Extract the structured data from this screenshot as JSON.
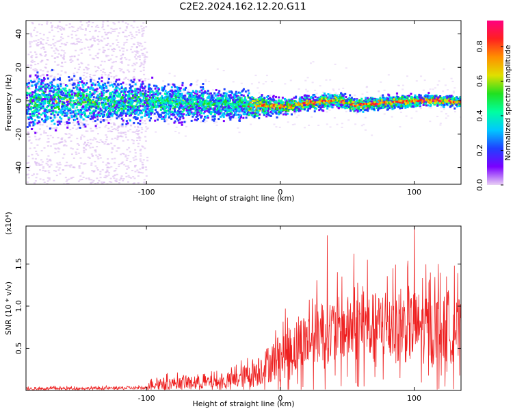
{
  "title": "C2E2.2024.162.12.20.G11",
  "chart_data": [
    {
      "type": "heatmap",
      "title": "C2E2.2024.162.12.20.G11",
      "xlabel": "Height of straight line (km)",
      "ylabel": "Frequency (Hz)",
      "xlim": [
        -190,
        135
      ],
      "ylim": [
        -50,
        48
      ],
      "xticks": [
        -100,
        0,
        100
      ],
      "xtick_labels": [
        "-100",
        "0",
        "100"
      ],
      "yticks": [
        -40,
        -20,
        0,
        20,
        40
      ],
      "ytick_labels": [
        "-40",
        "-20",
        "0",
        "20",
        "40"
      ],
      "colorbar": {
        "label": "Normalized spectral amplitude",
        "range": [
          0,
          0.95
        ],
        "ticks": [
          0.0,
          0.2,
          0.4,
          0.6,
          0.8
        ],
        "tick_labels": [
          "0.0",
          "0.2",
          "0.4",
          "0.6",
          "0.8"
        ],
        "colormap": [
          "#e8d0f4",
          "#7a00ff",
          "#2040ff",
          "#00c8ff",
          "#00ffa0",
          "#20e020",
          "#e0e000",
          "#ff9000",
          "#ff2020",
          "#ff0080"
        ]
      },
      "ridge": [
        {
          "x": -190,
          "y": 0
        },
        {
          "x": -150,
          "y": 0
        },
        {
          "x": -100,
          "y": 0
        },
        {
          "x": -60,
          "y": -1
        },
        {
          "x": -25,
          "y": -2
        },
        {
          "x": 0,
          "y": -3
        },
        {
          "x": 20,
          "y": -1
        },
        {
          "x": 40,
          "y": 1
        },
        {
          "x": 55,
          "y": -2
        },
        {
          "x": 70,
          "y": -1
        },
        {
          "x": 90,
          "y": 0
        },
        {
          "x": 110,
          "y": 1
        },
        {
          "x": 135,
          "y": 0
        }
      ],
      "scatter_extent_below_x": -100,
      "band_halfwidth": [
        {
          "x": -190,
          "hw": 14
        },
        {
          "x": -100,
          "hw": 10
        },
        {
          "x": -25,
          "hw": 7
        },
        {
          "x": 0,
          "hw": 4
        },
        {
          "x": 135,
          "hw": 3
        }
      ]
    },
    {
      "type": "line",
      "xlabel": "Height of straight line (km)",
      "ylabel": "SNR (10 * v/v)",
      "y_multiplier": "(x10⁴)",
      "xlim": [
        -190,
        135
      ],
      "ylim": [
        0,
        1.95
      ],
      "xticks": [
        -100,
        0,
        100
      ],
      "xtick_labels": [
        "-100",
        "0",
        "100"
      ],
      "yticks": [
        0.5,
        1.0,
        1.5
      ],
      "ytick_labels": [
        "0.5",
        "1.0",
        "1.5"
      ],
      "color": "#ee2020",
      "envelope": [
        {
          "x": -190,
          "base": 0.02,
          "amp": 0.03
        },
        {
          "x": -100,
          "base": 0.03,
          "amp": 0.03
        },
        {
          "x": -98,
          "base": 0.08,
          "amp": 0.12
        },
        {
          "x": -40,
          "base": 0.1,
          "amp": 0.15
        },
        {
          "x": -20,
          "base": 0.2,
          "amp": 0.3
        },
        {
          "x": -5,
          "base": 0.35,
          "amp": 0.45
        },
        {
          "x": 10,
          "base": 0.5,
          "amp": 0.6
        },
        {
          "x": 30,
          "base": 0.7,
          "amp": 0.7
        },
        {
          "x": 70,
          "base": 0.75,
          "amp": 0.75
        },
        {
          "x": 100,
          "base": 0.75,
          "amp": 0.8
        },
        {
          "x": 135,
          "base": 0.7,
          "amp": 0.7
        }
      ],
      "peaks": [
        {
          "x": 35,
          "y": 1.84
        },
        {
          "x": 55,
          "y": 1.62
        },
        {
          "x": 65,
          "y": 1.55
        },
        {
          "x": 100,
          "y": 1.98
        },
        {
          "x": 84,
          "y": 1.45
        },
        {
          "x": 118,
          "y": 1.5
        },
        {
          "x": 130,
          "y": 1.48
        }
      ]
    }
  ]
}
